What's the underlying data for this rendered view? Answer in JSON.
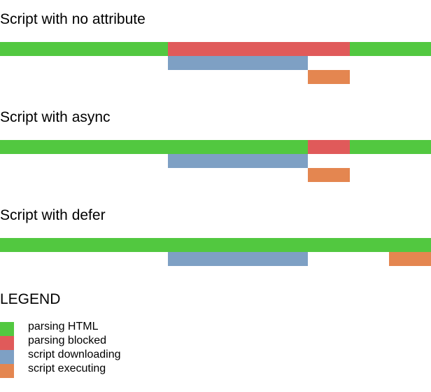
{
  "colors": {
    "parsing_html": "#52c840",
    "parsing_blocked": "#e05a5a",
    "script_downloading": "#7ea0c4",
    "script_executing": "#e48650"
  },
  "sections": [
    {
      "title": "Script with no attribute"
    },
    {
      "title": "Script with async"
    },
    {
      "title": "Script with defer"
    }
  ],
  "legend": {
    "title": "LEGEND",
    "items": [
      {
        "label": "parsing HTML",
        "color_key": "parsing_html"
      },
      {
        "label": "parsing blocked",
        "color_key": "parsing_blocked"
      },
      {
        "label": "script downloading",
        "color_key": "script_downloading"
      },
      {
        "label": "script executing",
        "color_key": "script_executing"
      }
    ]
  }
}
